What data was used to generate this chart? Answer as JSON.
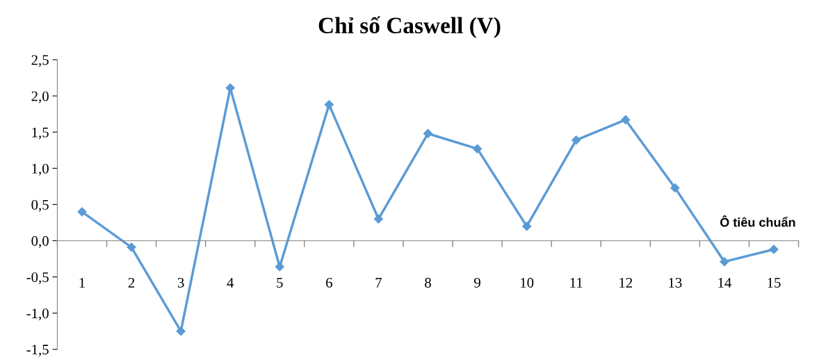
{
  "chart_data": {
    "type": "line",
    "title": "Chỉ số Caswell (V)",
    "xlabel": "Ô tiêu chuẩn",
    "categories": [
      "1",
      "2",
      "3",
      "4",
      "5",
      "6",
      "7",
      "8",
      "9",
      "10",
      "11",
      "12",
      "13",
      "14",
      "15"
    ],
    "series": [
      {
        "color": "#5b9bd5",
        "values": [
          0.4,
          -0.09,
          -1.25,
          2.11,
          -0.36,
          1.88,
          0.3,
          1.48,
          1.27,
          0.2,
          1.39,
          1.67,
          0.73,
          -0.29,
          -0.12
        ]
      }
    ],
    "ylim": [
      -1.5,
      2.5
    ],
    "yticks": [
      {
        "value": -1.5,
        "label": "-1,5"
      },
      {
        "value": -1.0,
        "label": "-1,0"
      },
      {
        "value": -0.5,
        "label": "-0,5"
      },
      {
        "value": 0,
        "label": "0,0"
      },
      {
        "value": 0.5,
        "label": "0,5"
      },
      {
        "value": 1.0,
        "label": "1,0"
      },
      {
        "value": 1.5,
        "label": "1,5"
      },
      {
        "value": 2.0,
        "label": "2,0"
      },
      {
        "value": 2.5,
        "label": "2,5"
      }
    ],
    "marker": "diamond",
    "line_style": "solid",
    "grid": false,
    "legend": false
  }
}
